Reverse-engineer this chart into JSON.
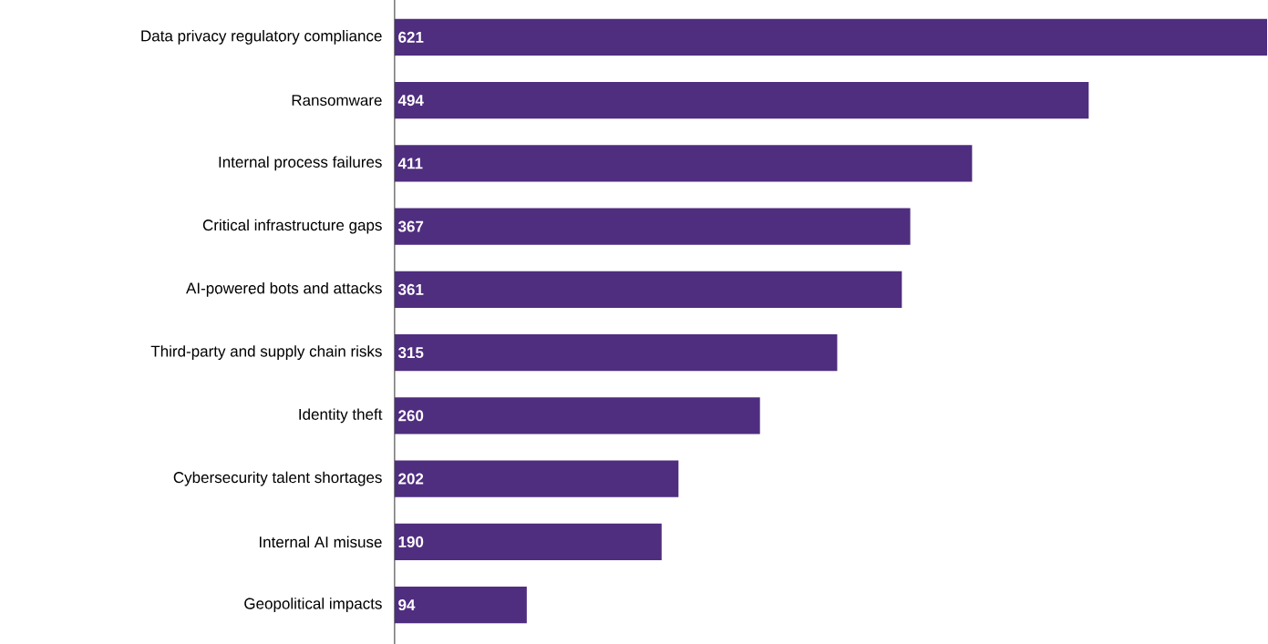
{
  "chart_data": {
    "type": "bar",
    "orientation": "horizontal",
    "data_labels": true,
    "categories": [
      "Data privacy regulatory compliance",
      "Ransomware",
      "Internal process failures",
      "Critical infrastructure gaps",
      "AI-powered bots and attacks",
      "Third-party and supply chain risks",
      "Identity theft",
      "Cybersecurity talent shortages",
      "Internal AI misuse",
      "Geopolitical impacts"
    ],
    "values": [
      621,
      494,
      411,
      367,
      361,
      315,
      260,
      202,
      190,
      94
    ],
    "color": "#4f2d7f"
  }
}
